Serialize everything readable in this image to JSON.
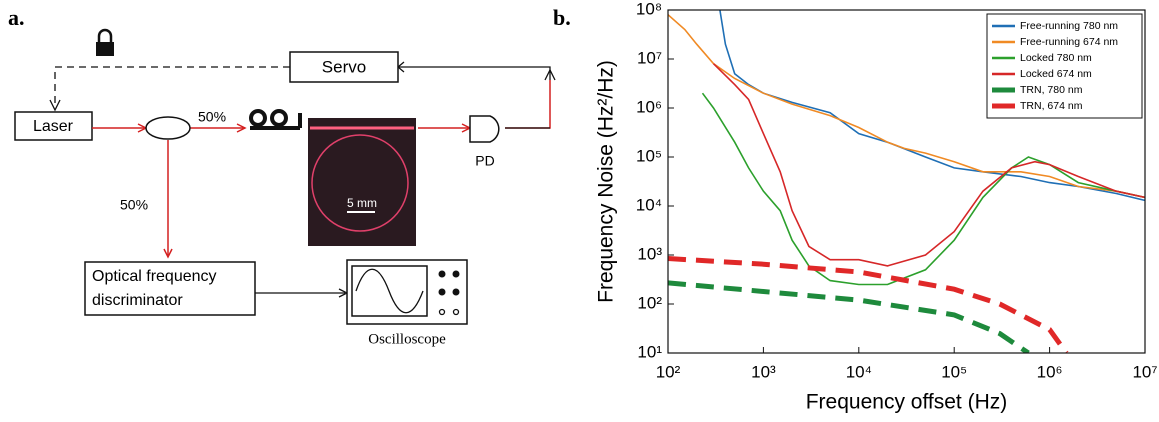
{
  "panel_a": {
    "label": "a.",
    "laser": "Laser",
    "servo": "Servo",
    "split_top": "50%",
    "split_bottom": "50%",
    "pd": "PD",
    "scale": "5 mm",
    "discriminator": [
      "Optical frequency",
      "discriminator"
    ],
    "oscilloscope": "Oscilloscope"
  },
  "panel_b_label": "b.",
  "chart_data": {
    "type": "line",
    "xlabel": "Frequency offset (Hz)",
    "ylabel": "Frequency Noise (Hz²/Hz)",
    "xlog": true,
    "ylog": true,
    "xlim": [
      100,
      10000000
    ],
    "ylim": [
      10,
      100000000
    ],
    "xticks": [
      {
        "value": 100,
        "label": "10²"
      },
      {
        "value": 1000,
        "label": "10³"
      },
      {
        "value": 10000,
        "label": "10⁴"
      },
      {
        "value": 100000,
        "label": "10⁵"
      },
      {
        "value": 1000000,
        "label": "10⁶"
      },
      {
        "value": 10000000,
        "label": "10⁷"
      }
    ],
    "yticks": [
      {
        "value": 10,
        "label": "10¹"
      },
      {
        "value": 100,
        "label": "10²"
      },
      {
        "value": 1000,
        "label": "10³"
      },
      {
        "value": 10000,
        "label": "10⁴"
      },
      {
        "value": 100000,
        "label": "10⁵"
      },
      {
        "value": 1000000,
        "label": "10⁶"
      },
      {
        "value": 10000000,
        "label": "10⁷"
      },
      {
        "value": 100000000,
        "label": "10⁸"
      }
    ],
    "legend": "upper right",
    "series": [
      {
        "name": "Free-running 780 nm",
        "color": "#1f6fb5",
        "style": "solid",
        "x": [
          350,
          400,
          500,
          700,
          1000,
          2000,
          5000,
          10000,
          20000,
          50000,
          100000,
          200000,
          500000,
          1000000,
          2000000,
          5000000,
          10000000
        ],
        "values": [
          100000000,
          20000000,
          5000000,
          3000000,
          2000000,
          1300000,
          800000,
          300000,
          200000,
          100000,
          60000,
          50000,
          40000,
          30000,
          25000,
          18000,
          13000
        ]
      },
      {
        "name": "Free-running 674 nm",
        "color": "#f08a24",
        "style": "solid",
        "x": [
          100,
          150,
          200,
          300,
          500,
          1000,
          2000,
          5000,
          10000,
          20000,
          30000,
          50000,
          100000,
          200000,
          500000,
          1000000,
          2000000,
          5000000,
          10000000
        ],
        "values": [
          80000000,
          40000000,
          20000000,
          8000000,
          4000000,
          2000000,
          1200000,
          700000,
          400000,
          200000,
          150000,
          120000,
          80000,
          50000,
          50000,
          40000,
          25000,
          20000,
          15000
        ]
      },
      {
        "name": "Locked 780 nm",
        "color": "#2ca02c",
        "style": "solid",
        "x": [
          230,
          300,
          500,
          700,
          1000,
          1500,
          2000,
          3000,
          5000,
          10000,
          20000,
          50000,
          100000,
          200000,
          400000,
          600000,
          1000000,
          2000000,
          5000000,
          10000000
        ],
        "values": [
          2000000,
          1000000,
          200000,
          60000,
          20000,
          8000,
          2000,
          600,
          300,
          250,
          250,
          500,
          2000,
          15000,
          60000,
          100000,
          70000,
          30000,
          20000,
          15000
        ]
      },
      {
        "name": "Locked 674 nm",
        "color": "#d62728",
        "style": "solid",
        "x": [
          300,
          500,
          700,
          1000,
          1500,
          2000,
          3000,
          5000,
          10000,
          20000,
          50000,
          100000,
          200000,
          400000,
          700000,
          1000000,
          2000000,
          5000000,
          10000000
        ],
        "values": [
          8000000,
          3000000,
          1500000,
          300000,
          50000,
          8000,
          1500,
          800,
          800,
          600,
          1000,
          3000,
          20000,
          60000,
          80000,
          70000,
          40000,
          20000,
          15000
        ]
      },
      {
        "name": "TRN, 780 nm",
        "color": "#1e8a3c",
        "style": "dashed",
        "x": [
          100,
          1000,
          10000,
          100000,
          300000,
          600000
        ],
        "values": [
          270,
          180,
          120,
          60,
          25,
          10
        ]
      },
      {
        "name": "TRN, 674 nm",
        "color": "#e02828",
        "style": "dashed",
        "x": [
          100,
          1000,
          10000,
          100000,
          300000,
          1000000,
          1500000
        ],
        "values": [
          850,
          650,
          450,
          200,
          100,
          30,
          10
        ]
      }
    ]
  }
}
